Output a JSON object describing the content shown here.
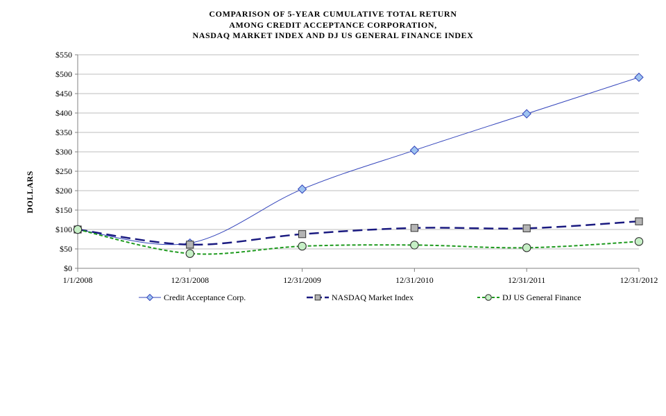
{
  "chart_data": {
    "type": "line",
    "title_lines": [
      "COMPARISON  OF  5-YEAR  CUMULATIVE  TOTAL  RETURN",
      "AMONG  CREDIT  ACCEPTANCE  CORPORATION,",
      "NASDAQ  MARKET  INDEX  AND  DJ US  GENERAL  FINANCE  INDEX"
    ],
    "xlabel": "",
    "ylabel": "DOLLARS",
    "categories": [
      "1/1/2008",
      "12/31/2008",
      "12/31/2009",
      "12/31/2010",
      "12/31/2011",
      "12/31/2012"
    ],
    "ylim": [
      0,
      550
    ],
    "yticks": [
      0,
      50,
      100,
      150,
      200,
      250,
      300,
      350,
      400,
      450,
      500,
      550
    ],
    "ytick_labels": [
      "$0",
      "$50",
      "$100",
      "$150",
      "$200",
      "$250",
      "$300",
      "$350",
      "$400",
      "$450",
      "$500",
      "$550"
    ],
    "grid": true,
    "legend_position": "bottom",
    "series": [
      {
        "name": "Credit Acceptance Corp.",
        "values": [
          100,
          65,
          204,
          304,
          398,
          492
        ],
        "color": "#3344bb",
        "marker": "diamond",
        "marker_fill": "#9ec3f0",
        "line_style": "solid"
      },
      {
        "name": "NASDAQ Market Index",
        "values": [
          100,
          61,
          88,
          104,
          103,
          121
        ],
        "color": "#1a1a80",
        "marker": "square",
        "marker_fill": "#b4b4b4",
        "line_style": "dashed"
      },
      {
        "name": "DJ US General Finance",
        "values": [
          100,
          38,
          57,
          60,
          53,
          69
        ],
        "color": "#1e9a1e",
        "marker": "circle",
        "marker_fill": "#c6efc6",
        "line_style": "dotted"
      }
    ]
  }
}
